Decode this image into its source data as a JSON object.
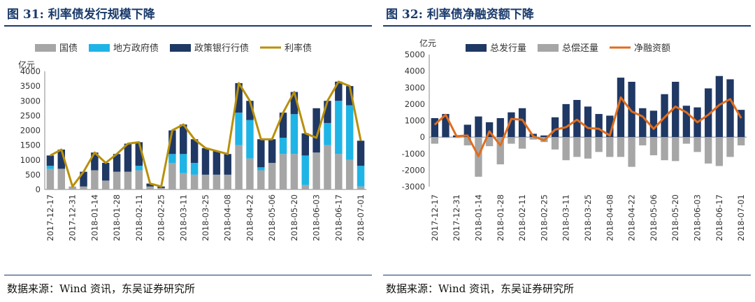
{
  "figures": [
    {
      "title": "图 31: 利率债发行规模下降",
      "source": "数据来源：Wind 资讯，东吴证券研究所",
      "chart_data": {
        "type": "bar",
        "stacked": true,
        "y_unit": "亿元",
        "ylim": [
          0,
          4000
        ],
        "yticks": [
          0,
          500,
          1000,
          1500,
          2000,
          2500,
          3000,
          3500,
          4000
        ],
        "categories": [
          "2017-12-17",
          "2017-12-24",
          "2017-12-31",
          "2018-01-07",
          "2018-01-14",
          "2018-01-21",
          "2018-01-28",
          "2018-02-04",
          "2018-02-11",
          "2018-02-18",
          "2018-02-25",
          "2018-03-04",
          "2018-03-11",
          "2018-03-18",
          "2018-03-25",
          "2018-04-01",
          "2018-04-08",
          "2018-04-15",
          "2018-04-22",
          "2018-04-29",
          "2018-05-06",
          "2018-05-13",
          "2018-05-20",
          "2018-05-27",
          "2018-06-03",
          "2018-06-10",
          "2018-06-17",
          "2018-06-24",
          "2018-07-01"
        ],
        "xtick_labels": [
          "2017-12-17",
          "2017-12-31",
          "2018-01-14",
          "2018-01-28",
          "2018-02-11",
          "2018-02-25",
          "2018-03-11",
          "2018-03-25",
          "2018-04-08",
          "2018-04-22",
          "2018-05-06",
          "2018-05-20",
          "2018-06-03",
          "2018-06-17",
          "2018-07-01"
        ],
        "series": [
          {
            "name": "国债",
            "kind": "bar",
            "color": "#a6a6a6",
            "values": [
              700,
              700,
              100,
              100,
              650,
              300,
              600,
              600,
              650,
              100,
              50,
              900,
              550,
              500,
              500,
              500,
              500,
              1500,
              1050,
              650,
              900,
              1200,
              1200,
              150,
              1250,
              1500,
              1200,
              1000,
              100
            ]
          },
          {
            "name": "地方政府债",
            "kind": "bar",
            "color": "#1fb4e6",
            "values": [
              100,
              0,
              0,
              0,
              0,
              0,
              0,
              0,
              150,
              0,
              0,
              300,
              650,
              400,
              0,
              0,
              0,
              1100,
              1300,
              100,
              0,
              550,
              1350,
              1000,
              0,
              750,
              1800,
              1850,
              700
            ]
          },
          {
            "name": "政策银行行债",
            "kind": "bar",
            "color": "#1f3864",
            "values": [
              350,
              650,
              0,
              500,
              600,
              600,
              600,
              950,
              800,
              100,
              50,
              800,
              1000,
              800,
              900,
              800,
              700,
              1000,
              650,
              950,
              800,
              850,
              750,
              750,
              1500,
              750,
              650,
              650,
              850
            ]
          },
          {
            "name": "利率债",
            "kind": "line",
            "color": "#b8900a",
            "values": [
              1150,
              1350,
              100,
              600,
              1250,
              900,
              1200,
              1550,
              1600,
              200,
              100,
              2000,
              2200,
              1700,
              1400,
              1300,
              1200,
              3600,
              3000,
              1700,
              1700,
              2600,
              3300,
              1900,
              1750,
              3000,
              3650,
              3500,
              1650
            ]
          }
        ]
      }
    },
    {
      "title": "图 32: 利率债净融资额下降",
      "source": "数据来源：Wind 资讯，东吴证券研究所",
      "chart_data": {
        "type": "bar",
        "y_unit": "亿元",
        "ylim": [
          -3000,
          5000
        ],
        "yticks": [
          -3000,
          -2000,
          -1000,
          0,
          1000,
          2000,
          3000,
          4000,
          5000
        ],
        "categories": [
          "2017-12-17",
          "2017-12-24",
          "2017-12-31",
          "2018-01-07",
          "2018-01-14",
          "2018-01-21",
          "2018-01-28",
          "2018-02-04",
          "2018-02-11",
          "2018-02-18",
          "2018-02-25",
          "2018-03-04",
          "2018-03-11",
          "2018-03-18",
          "2018-03-25",
          "2018-04-01",
          "2018-04-08",
          "2018-04-15",
          "2018-04-22",
          "2018-04-29",
          "2018-05-06",
          "2018-05-13",
          "2018-05-20",
          "2018-05-27",
          "2018-06-03",
          "2018-06-10",
          "2018-06-17",
          "2018-06-24",
          "2018-07-01"
        ],
        "xtick_labels": [
          "2017-12-17",
          "2017-12-31",
          "2018-01-14",
          "2018-01-28",
          "2018-02-11",
          "2018-02-25",
          "2018-03-11",
          "2018-03-25",
          "2018-04-08",
          "2018-04-22",
          "2018-05-06",
          "2018-05-20",
          "2018-06-03",
          "2018-06-17",
          "2018-07-01"
        ],
        "series": [
          {
            "name": "总发行量",
            "kind": "bar",
            "color": "#1f3864",
            "values": [
              1150,
              1400,
              100,
              750,
              1250,
              900,
              1150,
              1500,
              1750,
              200,
              100,
              1200,
              2000,
              2250,
              1850,
              1400,
              1300,
              3600,
              3350,
              1750,
              1600,
              2600,
              3350,
              1900,
              1800,
              2950,
              3700,
              3500,
              1650
            ]
          },
          {
            "name": "总偿还量",
            "kind": "bar",
            "color": "#a6a6a6",
            "values": [
              -400,
              -50,
              -50,
              -500,
              -2400,
              -550,
              -1650,
              -400,
              -700,
              -150,
              -300,
              -750,
              -1400,
              -1200,
              -1300,
              -900,
              -1200,
              -1200,
              -1800,
              -500,
              -1100,
              -1400,
              -1450,
              -400,
              -900,
              -1600,
              -1750,
              -1200,
              -500
            ]
          },
          {
            "name": "净融资额",
            "kind": "line",
            "color": "#e06d1e",
            "values": [
              750,
              1350,
              50,
              100,
              -1150,
              350,
              -500,
              1100,
              1050,
              50,
              -200,
              450,
              600,
              1050,
              550,
              500,
              100,
              2400,
              1550,
              1250,
              500,
              1200,
              1850,
              1500,
              900,
              1350,
              1950,
              2300,
              1150
            ]
          }
        ]
      }
    }
  ]
}
